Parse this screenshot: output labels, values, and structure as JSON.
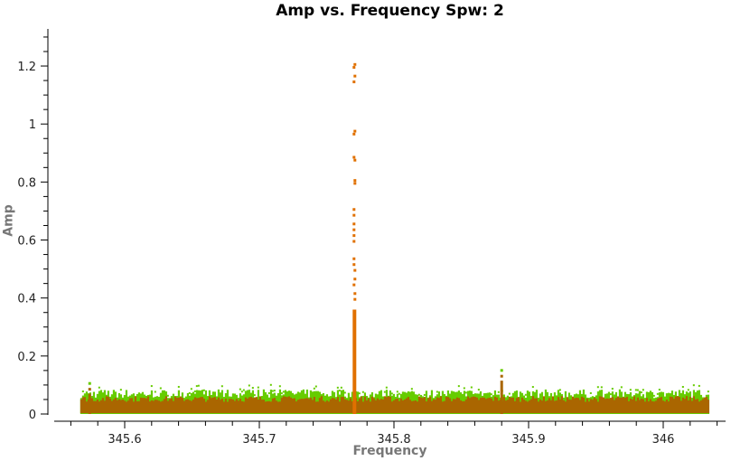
{
  "chart_data": {
    "type": "scatter",
    "title": "Amp vs. Frequency Spw: 2",
    "xlabel": "Frequency",
    "ylabel": "Amp",
    "xlim": [
      345.567,
      346.035
    ],
    "ylim": [
      0,
      1.3
    ],
    "x_ticks": [
      "345.6",
      "345.7",
      "345.8",
      "345.9",
      "346"
    ],
    "y_ticks": [
      "0",
      "0.2",
      "0.4",
      "0.6",
      "0.8",
      "1",
      "1.2"
    ],
    "grid": false,
    "legend": null,
    "series": [
      {
        "name": "baseline noise (green)",
        "color": "#66cc00",
        "x_range": [
          345.567,
          346.034
        ],
        "amp_range": [
          0,
          0.08
        ]
      },
      {
        "name": "baseline noise (brown)",
        "color": "#aa6600",
        "x_range": [
          345.567,
          346.034
        ],
        "amp_range": [
          0,
          0.055
        ]
      },
      {
        "name": "spectral line",
        "color": "#e07000",
        "x": 345.77,
        "amp_range": [
          0,
          1.21
        ]
      },
      {
        "name": "minor spike 1",
        "color": "#aa6600",
        "x": 345.573,
        "amp_max": 0.11
      },
      {
        "name": "minor spike 2",
        "color": "#aa6600",
        "x": 345.879,
        "amp_max": 0.155
      }
    ],
    "peak": {
      "x": 345.77,
      "amp": 1.21
    }
  }
}
